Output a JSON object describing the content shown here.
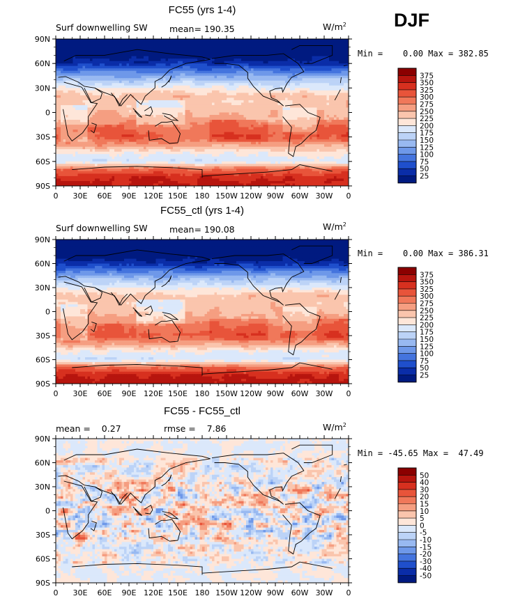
{
  "season_label": "DJF",
  "units_label": "W/m",
  "units_exponent": "2",
  "panels": [
    {
      "title": "FC55 (yrs 1-4)",
      "left_label": "Surf downwelling SW",
      "center_label": "mean= 190.35",
      "minmax_label": "Min =    0.00 Max = 382.85",
      "kind": "abs",
      "colorbar_labels": [
        "375",
        "350",
        "325",
        "300",
        "275",
        "250",
        "225",
        "200",
        "175",
        "150",
        "125",
        "100",
        "75",
        "50",
        "25"
      ]
    },
    {
      "title": "FC55_ctl (yrs 1-4)",
      "left_label": "Surf downwelling SW",
      "center_label": "mean= 190.08",
      "minmax_label": "Min =    0.00 Max = 386.31",
      "kind": "abs",
      "colorbar_labels": [
        "375",
        "350",
        "325",
        "300",
        "275",
        "250",
        "225",
        "200",
        "175",
        "150",
        "125",
        "100",
        "75",
        "50",
        "25"
      ]
    },
    {
      "title": "FC55 - FC55_ctl",
      "left_label": "mean =    0.27",
      "center_label": "rmse =    7.86",
      "minmax_label": "Min = -45.65 Max =  47.49",
      "kind": "diff",
      "colorbar_labels": [
        "50",
        "40",
        "30",
        "20",
        "15",
        "10",
        "5",
        "0",
        "-5",
        "-10",
        "-15",
        "-20",
        "-30",
        "-40",
        "-50"
      ]
    }
  ],
  "colorbar_abs_colors": [
    "#8b0000",
    "#b7150e",
    "#d7301f",
    "#e8543a",
    "#f0785a",
    "#f59e81",
    "#fac5ad",
    "#fee6d9",
    "#dbe8fb",
    "#bcd3f7",
    "#98b9f1",
    "#6e98e9",
    "#4474de",
    "#1f4fcc",
    "#0a2da8",
    "#001a80"
  ],
  "colorbar_diff_colors": [
    "#8b0000",
    "#b7150e",
    "#d7301f",
    "#e8543a",
    "#f0785a",
    "#f59e81",
    "#fac5ad",
    "#fee6d9",
    "#dbe8fb",
    "#bcd3f7",
    "#98b9f1",
    "#6e98e9",
    "#4474de",
    "#1f4fcc",
    "#0a2da8",
    "#001a80"
  ],
  "chart_data": [
    {
      "type": "heatmap",
      "title": "FC55 (yrs 1-4)",
      "field": "Surf downwelling SW",
      "units": "W/m2",
      "mean": 190.35,
      "min": 0.0,
      "max": 382.85,
      "x_ticks": [
        "0",
        "30E",
        "60E",
        "90E",
        "120E",
        "150E",
        "180",
        "150W",
        "120W",
        "90W",
        "60W",
        "30W",
        "0"
      ],
      "y_ticks": [
        "90N",
        "60N",
        "30N",
        "0",
        "30S",
        "60S",
        "90S"
      ],
      "xlim": [
        0,
        360
      ],
      "ylim": [
        -90,
        90
      ],
      "levels": [
        25,
        50,
        75,
        100,
        125,
        150,
        175,
        200,
        225,
        250,
        275,
        300,
        325,
        350,
        375
      ],
      "zonal_profile": [
        {
          "lat": 85,
          "value": 0
        },
        {
          "lat": 70,
          "value": 5
        },
        {
          "lat": 60,
          "value": 40
        },
        {
          "lat": 50,
          "value": 95
        },
        {
          "lat": 40,
          "value": 150
        },
        {
          "lat": 30,
          "value": 200
        },
        {
          "lat": 20,
          "value": 240
        },
        {
          "lat": 10,
          "value": 235
        },
        {
          "lat": 0,
          "value": 245
        },
        {
          "lat": -10,
          "value": 265
        },
        {
          "lat": -20,
          "value": 290
        },
        {
          "lat": -30,
          "value": 300
        },
        {
          "lat": -40,
          "value": 260
        },
        {
          "lat": -50,
          "value": 205
        },
        {
          "lat": -60,
          "value": 180
        },
        {
          "lat": -70,
          "value": 300
        },
        {
          "lat": -80,
          "value": 345
        },
        {
          "lat": -88,
          "value": 355
        }
      ]
    },
    {
      "type": "heatmap",
      "title": "FC55_ctl (yrs 1-4)",
      "field": "Surf downwelling SW",
      "units": "W/m2",
      "mean": 190.08,
      "min": 0.0,
      "max": 386.31,
      "x_ticks": [
        "0",
        "30E",
        "60E",
        "90E",
        "120E",
        "150E",
        "180",
        "150W",
        "120W",
        "90W",
        "60W",
        "30W",
        "0"
      ],
      "y_ticks": [
        "90N",
        "60N",
        "30N",
        "0",
        "30S",
        "60S",
        "90S"
      ],
      "xlim": [
        0,
        360
      ],
      "ylim": [
        -90,
        90
      ],
      "levels": [
        25,
        50,
        75,
        100,
        125,
        150,
        175,
        200,
        225,
        250,
        275,
        300,
        325,
        350,
        375
      ],
      "zonal_profile": [
        {
          "lat": 85,
          "value": 0
        },
        {
          "lat": 70,
          "value": 5
        },
        {
          "lat": 60,
          "value": 38
        },
        {
          "lat": 50,
          "value": 92
        },
        {
          "lat": 40,
          "value": 148
        },
        {
          "lat": 30,
          "value": 198
        },
        {
          "lat": 20,
          "value": 238
        },
        {
          "lat": 10,
          "value": 232
        },
        {
          "lat": 0,
          "value": 243
        },
        {
          "lat": -10,
          "value": 263
        },
        {
          "lat": -20,
          "value": 292
        },
        {
          "lat": -30,
          "value": 302
        },
        {
          "lat": -40,
          "value": 262
        },
        {
          "lat": -50,
          "value": 203
        },
        {
          "lat": -60,
          "value": 178
        },
        {
          "lat": -70,
          "value": 302
        },
        {
          "lat": -80,
          "value": 348
        },
        {
          "lat": -88,
          "value": 358
        }
      ]
    },
    {
      "type": "heatmap",
      "title": "FC55 - FC55_ctl",
      "units": "W/m2",
      "mean": 0.27,
      "rmse": 7.86,
      "min": -45.65,
      "max": 47.49,
      "x_ticks": [
        "0",
        "30E",
        "60E",
        "90E",
        "120E",
        "150E",
        "180",
        "150W",
        "120W",
        "90W",
        "60W",
        "30W",
        "0"
      ],
      "y_ticks": [
        "90N",
        "60N",
        "30N",
        "0",
        "30S",
        "60S",
        "90S"
      ],
      "xlim": [
        0,
        360
      ],
      "ylim": [
        -90,
        90
      ],
      "levels": [
        -50,
        -40,
        -30,
        -20,
        -15,
        -10,
        -5,
        0,
        5,
        10,
        15,
        20,
        30,
        40,
        50
      ]
    }
  ]
}
